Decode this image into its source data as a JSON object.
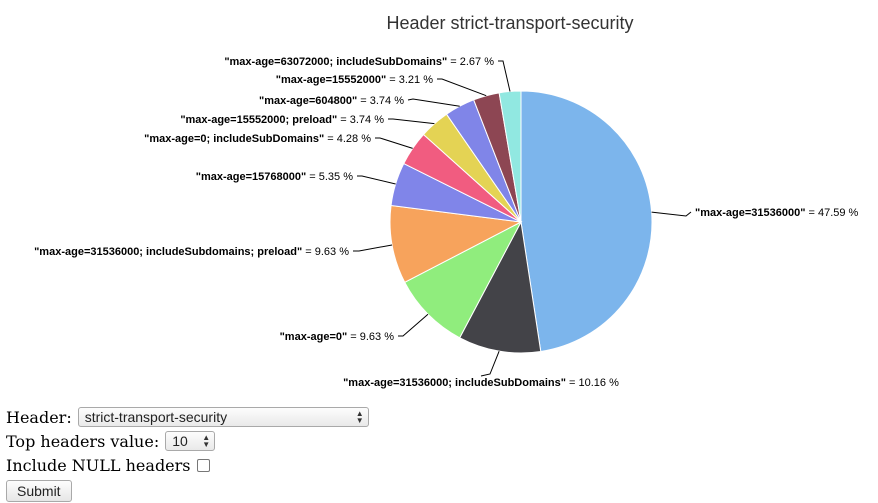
{
  "chart_data": {
    "type": "pie",
    "title": "Header strict-transport-security",
    "slices": [
      {
        "label": "\"max-age=31536000\"",
        "value": 47.59,
        "display": " = 47.59 %",
        "color": "#7cb5ec"
      },
      {
        "label": "\"max-age=31536000; includeSubDomains\"",
        "value": 10.16,
        "display": " = 10.16 %",
        "color": "#434348"
      },
      {
        "label": "\"max-age=0\"",
        "value": 9.63,
        "display": " = 9.63 %",
        "color": "#90ed7d"
      },
      {
        "label": "\"max-age=31536000; includeSubdomains; preload\"",
        "value": 9.63,
        "display": " = 9.63 %",
        "color": "#f7a35c"
      },
      {
        "label": "\"max-age=15768000\"",
        "value": 5.35,
        "display": " = 5.35 %",
        "color": "#8085e9"
      },
      {
        "label": "\"max-age=0; includeSubDomains\"",
        "value": 4.28,
        "display": " = 4.28 %",
        "color": "#f15c80"
      },
      {
        "label": "\"max-age=15552000; preload\"",
        "value": 3.74,
        "display": " = 3.74 %",
        "color": "#e4d354"
      },
      {
        "label": "\"max-age=604800\"",
        "value": 3.74,
        "display": " = 3.74 %",
        "color": "#8085e8"
      },
      {
        "label": "\"max-age=15552000\"",
        "value": 3.21,
        "display": " = 3.21 %",
        "color": "#8d4653"
      },
      {
        "label": "\"max-age=63072000; includeSubDomains\"",
        "value": 2.67,
        "display": " = 2.67 %",
        "color": "#91e8e1"
      }
    ]
  },
  "form": {
    "header_label": "Header:",
    "header_value": "strict-transport-security",
    "top_label": "Top headers value:",
    "top_value": "10",
    "null_label": "Include NULL headers",
    "null_checked": false,
    "submit_label": "Submit"
  }
}
